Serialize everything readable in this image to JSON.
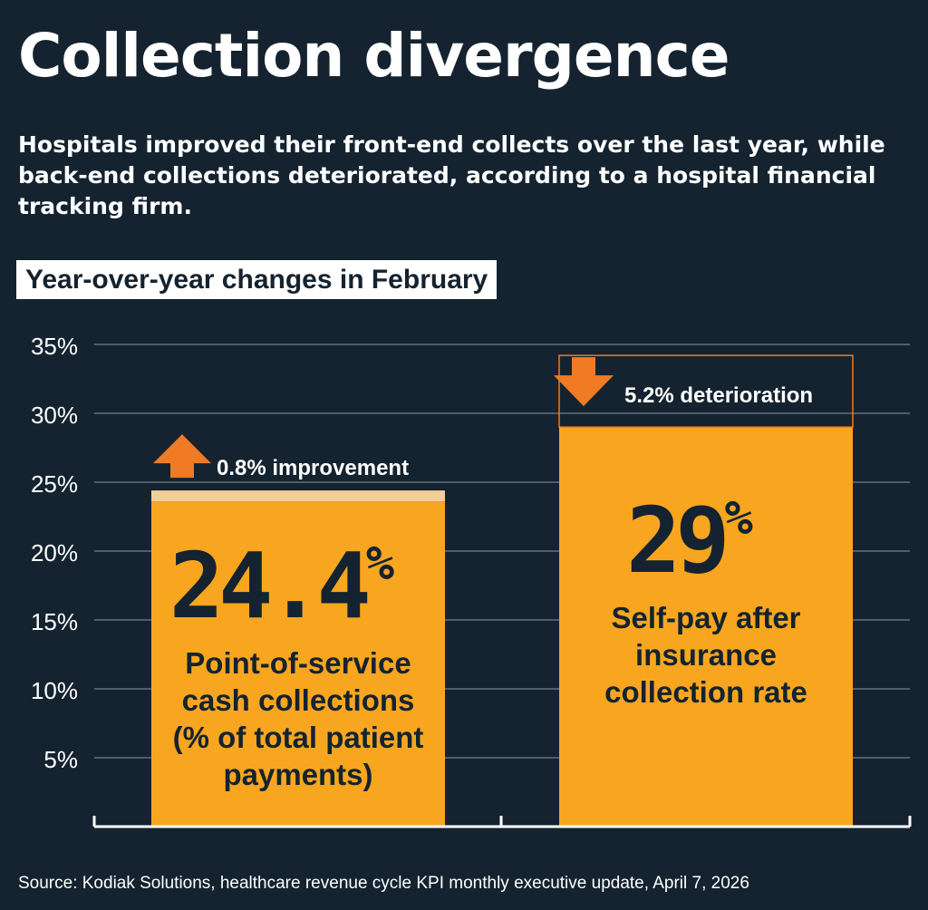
{
  "title": "Collection divergence",
  "subtitle": "Hospitals improved their front-end collects over the last year, while back-end collections deteriorated, according to a hospital financial tracking firm.",
  "chart_label": "Year-over-year changes in February",
  "source": "Source: Kodiak Solutions, healthcare revenue cycle KPI monthly executive update, April 7, 2026",
  "colors": {
    "background": "#14232f",
    "bar": "#f8a61f",
    "bar_change_up": "#f2cf9a",
    "arrow": "#f07b24",
    "text_dark": "#14232f",
    "text_light": "#ffffff"
  },
  "chart_data": {
    "type": "bar",
    "title": "Year-over-year changes in February",
    "xlabel": "",
    "ylabel": "",
    "ylim": [
      0,
      35
    ],
    "yticks": [
      5,
      10,
      15,
      20,
      25,
      30,
      35
    ],
    "ytick_labels": [
      "5%",
      "10%",
      "15%",
      "20%",
      "25%",
      "30%",
      "35%"
    ],
    "grid": true,
    "categories": [
      "Point-of-service cash collections (% of total patient payments)",
      "Self-pay after insurance collection rate"
    ],
    "bars": [
      {
        "value": 24.4,
        "value_main": "24.4",
        "value_unit": "%",
        "label_lines": [
          "Point-of-service",
          "cash collections",
          "(% of total patient",
          "payments)"
        ],
        "change": 0.8,
        "change_direction": "up",
        "change_label": "0.8% improvement"
      },
      {
        "value": 29,
        "value_main": "29",
        "value_unit": "%",
        "label_lines": [
          "Self-pay after",
          "insurance",
          "collection rate"
        ],
        "change": 5.2,
        "change_direction": "down",
        "change_label": "5.2% deterioration"
      }
    ]
  }
}
